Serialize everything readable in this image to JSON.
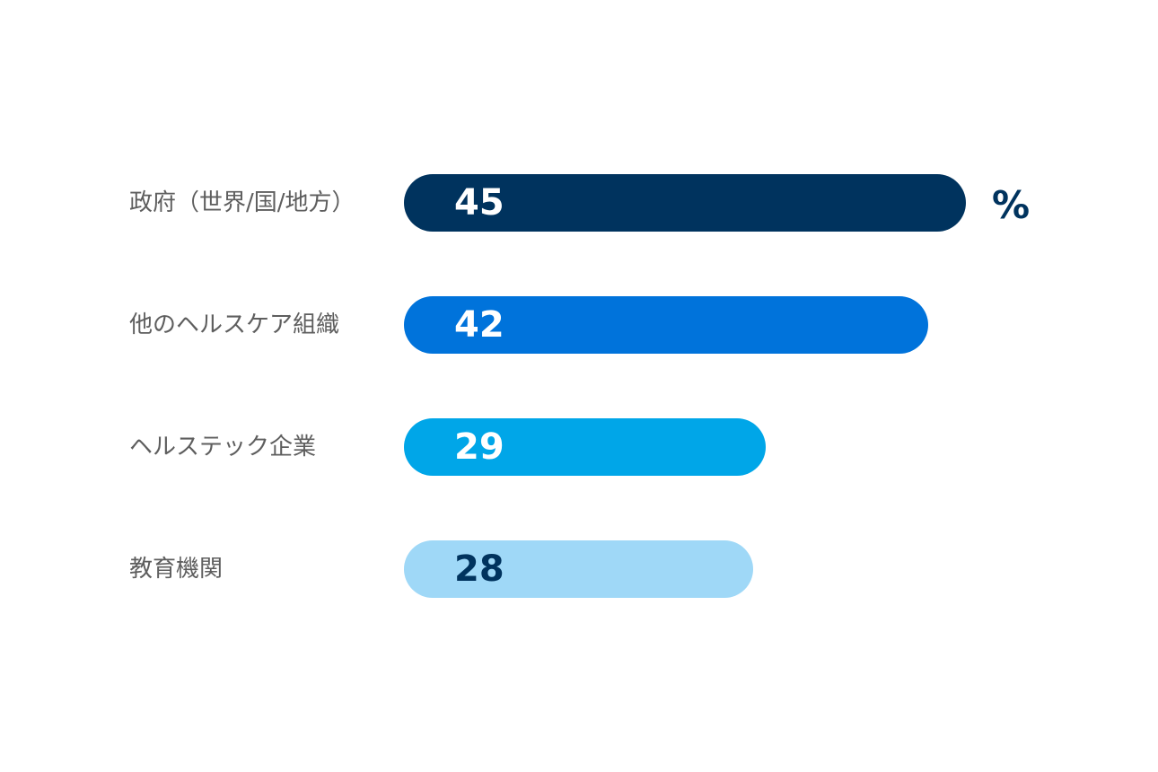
{
  "chart_data": {
    "type": "bar",
    "orientation": "horizontal",
    "unit": "%",
    "categories": [
      "政府（世界/国/地方）",
      "他のヘルスケア組織",
      "ヘルステック企業",
      "教育機関"
    ],
    "values": [
      45,
      42,
      29,
      28
    ],
    "bar_colors": [
      "#00335e",
      "#0073db",
      "#00a6e8",
      "#9fd8f7"
    ],
    "value_label_colors": [
      "#ffffff",
      "#ffffff",
      "#ffffff",
      "#00335e"
    ],
    "unit_color": "#00335e",
    "label_color": "#5e5e5e",
    "grid": false,
    "legend": "none"
  }
}
